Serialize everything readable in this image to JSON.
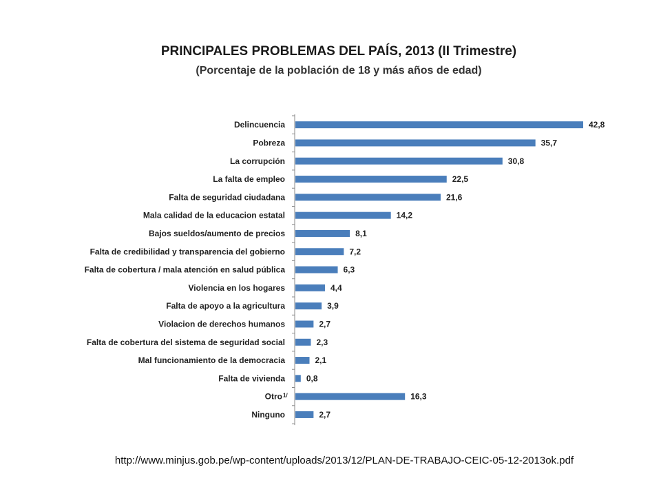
{
  "slide": {
    "source_url": "http://www.minjus.gob.pe/wp-content/uploads/2013/12/PLAN-DE-TRABAJO-CEIC-05-12-2013ok.pdf"
  },
  "chart_data": {
    "type": "bar",
    "orientation": "horizontal",
    "title": "PRINCIPALES PROBLEMAS DEL PAÍS, 2013 (II Trimestre)",
    "subtitle": "(Porcentaje de la población de 18 y más años de edad)",
    "categories": [
      "Delincuencia",
      "Pobreza",
      "La corrupción",
      "La falta de empleo",
      "Falta de seguridad ciudadana",
      "Mala calidad de la educacion estatal",
      "Bajos sueldos/aumento de precios",
      "Falta de credibilidad y transparencia del gobierno",
      "Falta de cobertura / mala atención en salud pública",
      "Violencia en los hogares",
      "Falta de apoyo a la agricultura",
      "Violacion de derechos humanos",
      "Falta de cobertura del sistema de seguridad social",
      "Mal funcionamiento de la democracia",
      "Falta de vivienda",
      "Otro",
      "Ninguno"
    ],
    "footnote_marks": [
      "",
      "",
      "",
      "",
      "",
      "",
      "",
      "",
      "",
      "",
      "",
      "",
      "",
      "",
      "",
      "1/",
      ""
    ],
    "values": [
      42.8,
      35.7,
      30.8,
      22.5,
      21.6,
      14.2,
      8.1,
      7.2,
      6.3,
      4.4,
      3.9,
      2.7,
      2.3,
      2.1,
      0.8,
      16.3,
      2.7
    ],
    "value_labels": [
      "42,8",
      "35,7",
      "30,8",
      "22,5",
      "21,6",
      "14,2",
      "8,1",
      "7,2",
      "6,3",
      "4,4",
      "3,9",
      "2,7",
      "2,3",
      "2,1",
      "0,8",
      "16,3",
      "2,7"
    ],
    "xlim": [
      0,
      42.8
    ],
    "grid": false,
    "bar_color": "#4a7ebb",
    "axis_color": "#888888"
  }
}
